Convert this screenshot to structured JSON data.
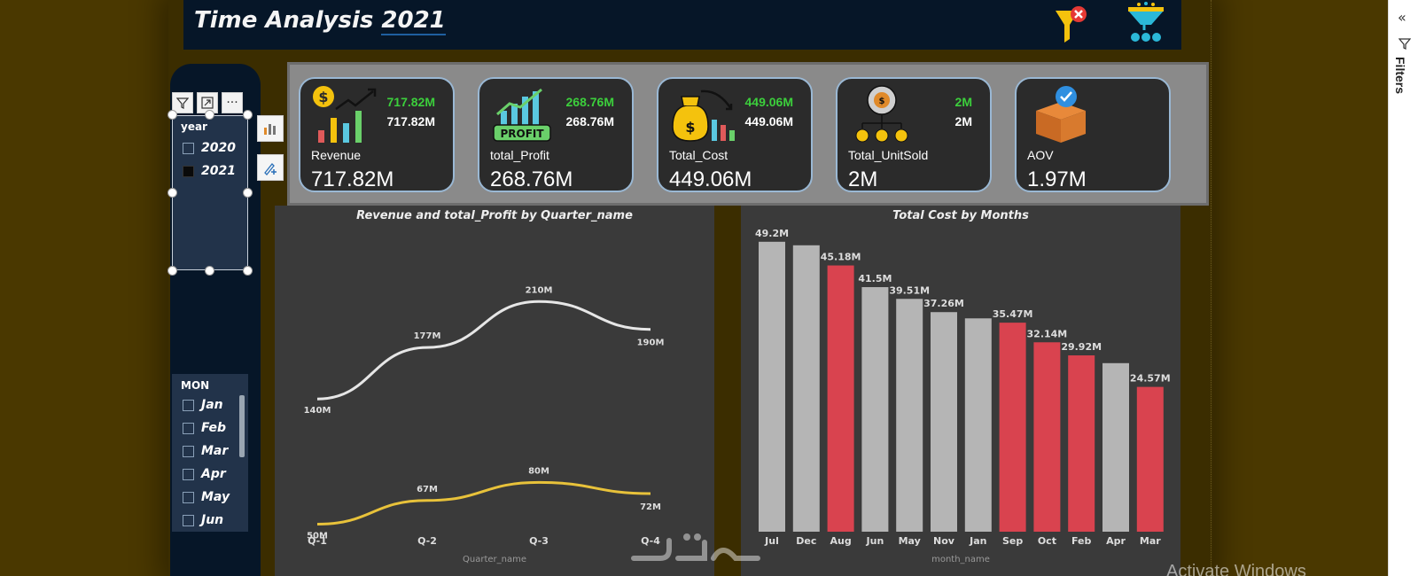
{
  "header": {
    "title_text": "Time Analysis",
    "title_year": "2021"
  },
  "icons": {
    "clear_filter": "clear-filter-icon",
    "funnel": "funnel-icon"
  },
  "year_slicer": {
    "title": "year",
    "items": [
      {
        "label": "2020",
        "checked": false
      },
      {
        "label": "2021",
        "checked": true
      }
    ]
  },
  "mon_slicer": {
    "title": "MON",
    "items": [
      "Jan",
      "Feb",
      "Mar",
      "Apr",
      "May",
      "Jun"
    ]
  },
  "visual_header": [
    "filter-icon",
    "focus-mode-icon",
    "more-options-icon"
  ],
  "side_tools": [
    "chart-type-icon",
    "format-paint-icon"
  ],
  "kpis": [
    {
      "label": "Revenue",
      "v1": "717.82M",
      "v2": "717.82M",
      "big": "717.82M",
      "icon": "revenue-icon"
    },
    {
      "label": "total_Profit",
      "v1": "268.76M",
      "v2": "268.76M",
      "big": "268.76M",
      "icon": "profit-icon",
      "icon_text": "PROFIT"
    },
    {
      "label": "Total_Cost",
      "v1": "449.06M",
      "v2": "449.06M",
      "big": "449.06M",
      "icon": "cost-icon"
    },
    {
      "label": "Total_UnitSold",
      "v1": "2M",
      "v2": "2M",
      "big": "2M",
      "icon": "units-sold-icon"
    },
    {
      "label": "AOV",
      "v1": "",
      "v2": "",
      "big": "1.97M",
      "icon": "aov-box-icon"
    }
  ],
  "chart_data": [
    {
      "type": "line",
      "title": "Revenue and total_Profit by Quarter_name",
      "xlabel": "Quarter_name",
      "categories": [
        "Q-1",
        "Q-2",
        "Q-3",
        "Q-4"
      ],
      "series": [
        {
          "values": [
            140,
            177,
            210,
            190
          ],
          "labels": [
            "140M",
            "177M",
            "210M",
            "190M"
          ],
          "color": "#e6e6e6"
        },
        {
          "values": [
            50,
            67,
            80,
            72
          ],
          "labels": [
            "50M",
            "67M",
            "80M",
            "72M"
          ],
          "color": "#e8c23a"
        }
      ],
      "grid": false
    },
    {
      "type": "bar",
      "title": "Total Cost by Months",
      "xlabel": "month_name",
      "categories": [
        "Jul",
        "Dec",
        "Aug",
        "Jun",
        "May",
        "Nov",
        "Jan",
        "Sep",
        "Oct",
        "Feb",
        "Apr",
        "Mar"
      ],
      "values": [
        49.2,
        48.6,
        45.18,
        41.5,
        39.51,
        37.26,
        36.2,
        35.47,
        32.14,
        29.92,
        28.6,
        24.57
      ],
      "labels": [
        "49.2M",
        "",
        "45.18M",
        "41.5M",
        "39.51M",
        "37.26M",
        "",
        "35.47M",
        "32.14M",
        "29.92M",
        "",
        "24.57M"
      ],
      "colors": [
        "#b5b5b5",
        "#b5b5b5",
        "#d9434f",
        "#b5b5b5",
        "#b5b5b5",
        "#b5b5b5",
        "#b5b5b5",
        "#d9434f",
        "#d9434f",
        "#d9434f",
        "#b5b5b5",
        "#d9434f"
      ],
      "grid": false
    }
  ],
  "right_pane": {
    "label": "Filters"
  },
  "watermark": "Activate Windows",
  "colors": {
    "highlight": "#d9434f",
    "neutral": "#b5b5b5",
    "kpi_green": "#3ccf3c",
    "navy": "#061628"
  }
}
